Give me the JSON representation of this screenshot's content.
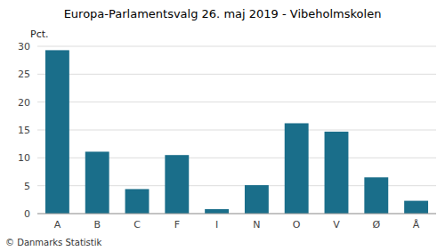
{
  "chart_data": {
    "type": "bar",
    "title": "Europa-Parlamentsvalg 26. maj 2019 - Vibeholmskolen",
    "ylabel": "Pct.",
    "annotations": [
      "© Danmarks Statistik"
    ],
    "categories": [
      "A",
      "B",
      "C",
      "F",
      "I",
      "N",
      "O",
      "V",
      "Ø",
      "Å"
    ],
    "values": [
      29.3,
      11.1,
      4.4,
      10.5,
      0.8,
      5.1,
      16.2,
      14.7,
      6.5,
      2.3
    ],
    "color": "#1a6e8a",
    "ylim": [
      0,
      30
    ],
    "yticks": [
      0,
      5,
      10,
      15,
      20,
      25,
      30
    ],
    "grid": true
  }
}
